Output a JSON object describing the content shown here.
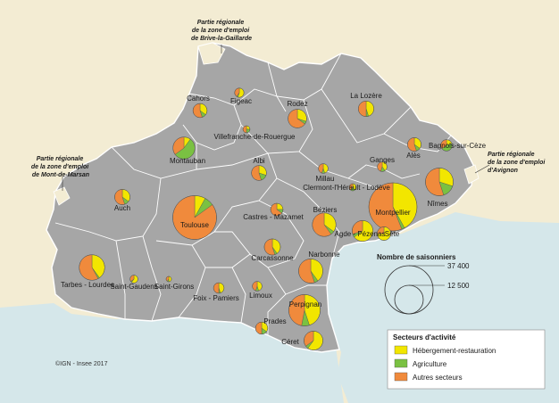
{
  "colors": {
    "hebergement": "#f2e600",
    "agriculture": "#7ac142",
    "autres": "#f08a3c",
    "region_fill": "#a6a6a6",
    "neighbour_fill": "#f3ecd3",
    "sea": "#d5e7ea"
  },
  "external_zones": [
    {
      "id": "brive",
      "lines": [
        "Partie régionale",
        "de la zone d'emploi",
        "de Brive-la-Gaillarde"
      ]
    },
    {
      "id": "marsan",
      "lines": [
        "Partie régionale",
        "de la zone d'emploi",
        "de Mont-de-Marsan"
      ]
    },
    {
      "id": "avignon",
      "lines": [
        "Partie régionale",
        "de la zone d'emploi",
        "d'Avignon"
      ]
    }
  ],
  "zones": [
    {
      "name": "Cahors",
      "total": 3200,
      "shares": [
        0.35,
        0.1,
        0.55
      ]
    },
    {
      "name": "Figeac",
      "total": 1400,
      "shares": [
        0.55,
        0.05,
        0.4
      ]
    },
    {
      "name": "Rodez",
      "total": 5600,
      "shares": [
        0.3,
        0.05,
        0.65
      ]
    },
    {
      "name": "La Lozère",
      "total": 3900,
      "shares": [
        0.45,
        0.05,
        0.5
      ]
    },
    {
      "name": "Villefranche-de-Rouergue",
      "total": 800,
      "shares": [
        0.25,
        0.25,
        0.5
      ]
    },
    {
      "name": "Montauban",
      "total": 7800,
      "shares": [
        0.1,
        0.55,
        0.35
      ]
    },
    {
      "name": "Alès",
      "total": 3000,
      "shares": [
        0.35,
        0.1,
        0.55
      ]
    },
    {
      "name": "Bagnols-sur-Cèze",
      "total": 2100,
      "shares": [
        0.2,
        0.45,
        0.35
      ]
    },
    {
      "name": "Ganges",
      "total": 1500,
      "shares": [
        0.4,
        0.15,
        0.45
      ]
    },
    {
      "name": "Albi",
      "total": 3600,
      "shares": [
        0.3,
        0.15,
        0.55
      ]
    },
    {
      "name": "Millau",
      "total": 1500,
      "shares": [
        0.45,
        0.1,
        0.45
      ]
    },
    {
      "name": "Clermont-l'Hérault - Lodève",
      "total": 800,
      "shares": [
        0.4,
        0.2,
        0.4
      ]
    },
    {
      "name": "Nîmes",
      "total": 12500,
      "shares": [
        0.3,
        0.15,
        0.55
      ]
    },
    {
      "name": "Montpellier",
      "total": 37400,
      "shares": [
        0.42,
        0.02,
        0.56
      ]
    },
    {
      "name": "Auch",
      "total": 3800,
      "shares": [
        0.35,
        0.1,
        0.55
      ]
    },
    {
      "name": "Toulouse",
      "total": 31000,
      "shares": [
        0.08,
        0.07,
        0.85
      ]
    },
    {
      "name": "Castres - Mazamet",
      "total": 2500,
      "shares": [
        0.25,
        0.1,
        0.65
      ]
    },
    {
      "name": "Béziers",
      "total": 9000,
      "shares": [
        0.35,
        0.05,
        0.6
      ]
    },
    {
      "name": "Agde - Pézenas",
      "total": 7000,
      "shares": [
        0.65,
        0.05,
        0.3
      ]
    },
    {
      "name": "Sète",
      "total": 3000,
      "shares": [
        0.75,
        0.0,
        0.25
      ]
    },
    {
      "name": "Carcassonne",
      "total": 4200,
      "shares": [
        0.4,
        0.05,
        0.55
      ]
    },
    {
      "name": "Narbonne",
      "total": 9500,
      "shares": [
        0.4,
        0.05,
        0.55
      ]
    },
    {
      "name": "Tarbes - Lourdes",
      "total": 10500,
      "shares": [
        0.4,
        0.02,
        0.58
      ]
    },
    {
      "name": "Saint-Gaudens",
      "total": 1000,
      "shares": [
        0.6,
        0.05,
        0.35
      ]
    },
    {
      "name": "Saint-Girons",
      "total": 400,
      "shares": [
        0.5,
        0.1,
        0.4
      ]
    },
    {
      "name": "Foix - Pamiers",
      "total": 1800,
      "shares": [
        0.45,
        0.05,
        0.5
      ]
    },
    {
      "name": "Limoux",
      "total": 1500,
      "shares": [
        0.45,
        0.1,
        0.45
      ]
    },
    {
      "name": "Perpignan",
      "total": 16000,
      "shares": [
        0.45,
        0.08,
        0.47
      ]
    },
    {
      "name": "Prades",
      "total": 2400,
      "shares": [
        0.35,
        0.15,
        0.5
      ]
    },
    {
      "name": "Céret",
      "total": 5800,
      "shares": [
        0.6,
        0.05,
        0.35
      ]
    }
  ],
  "legend_size": {
    "title": "Nombre de saisonniers",
    "values": [
      "37 400",
      "12 500"
    ]
  },
  "legend_sectors": {
    "title": "Secteurs d'activité",
    "items": [
      "Hébergement-restauration",
      "Agriculture",
      "Autres secteurs"
    ]
  },
  "copyright": "©IGN - Insee 2017"
}
